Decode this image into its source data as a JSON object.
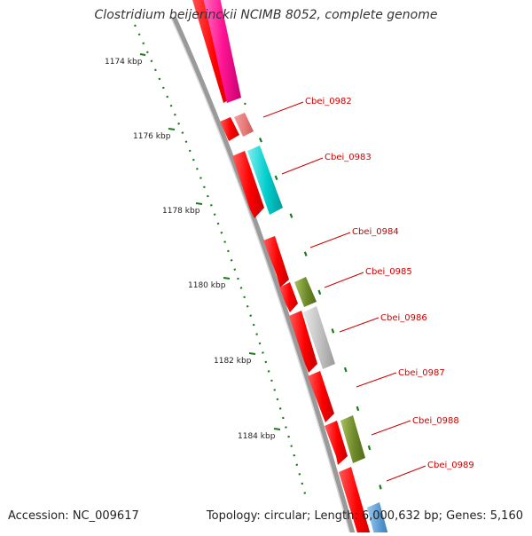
{
  "genome_map": {
    "title": "Clostridium beijerinckii NCIMB 8052, complete genome",
    "accession": "Accession: NC_009617",
    "summary": "Topology: circular; Length: 6,000,632 bp; Genes: 5,160",
    "ruler_labels": [
      "1174 kbp",
      "1176 kbp",
      "1178 kbp",
      "1180 kbp",
      "1182 kbp",
      "1184 kbp"
    ],
    "gene_labels": [
      "Cbei_0982",
      "Cbei_0983",
      "Cbei_0984",
      "Cbei_0985",
      "Cbei_0986",
      "Cbei_0987",
      "Cbei_0988",
      "Cbei_0989"
    ],
    "colors": {
      "cds_forward": "#ff0000",
      "backbone": "#8c8c8c",
      "ruler_ticks": "#1a7a1a",
      "label_text": "#cc0000"
    }
  }
}
